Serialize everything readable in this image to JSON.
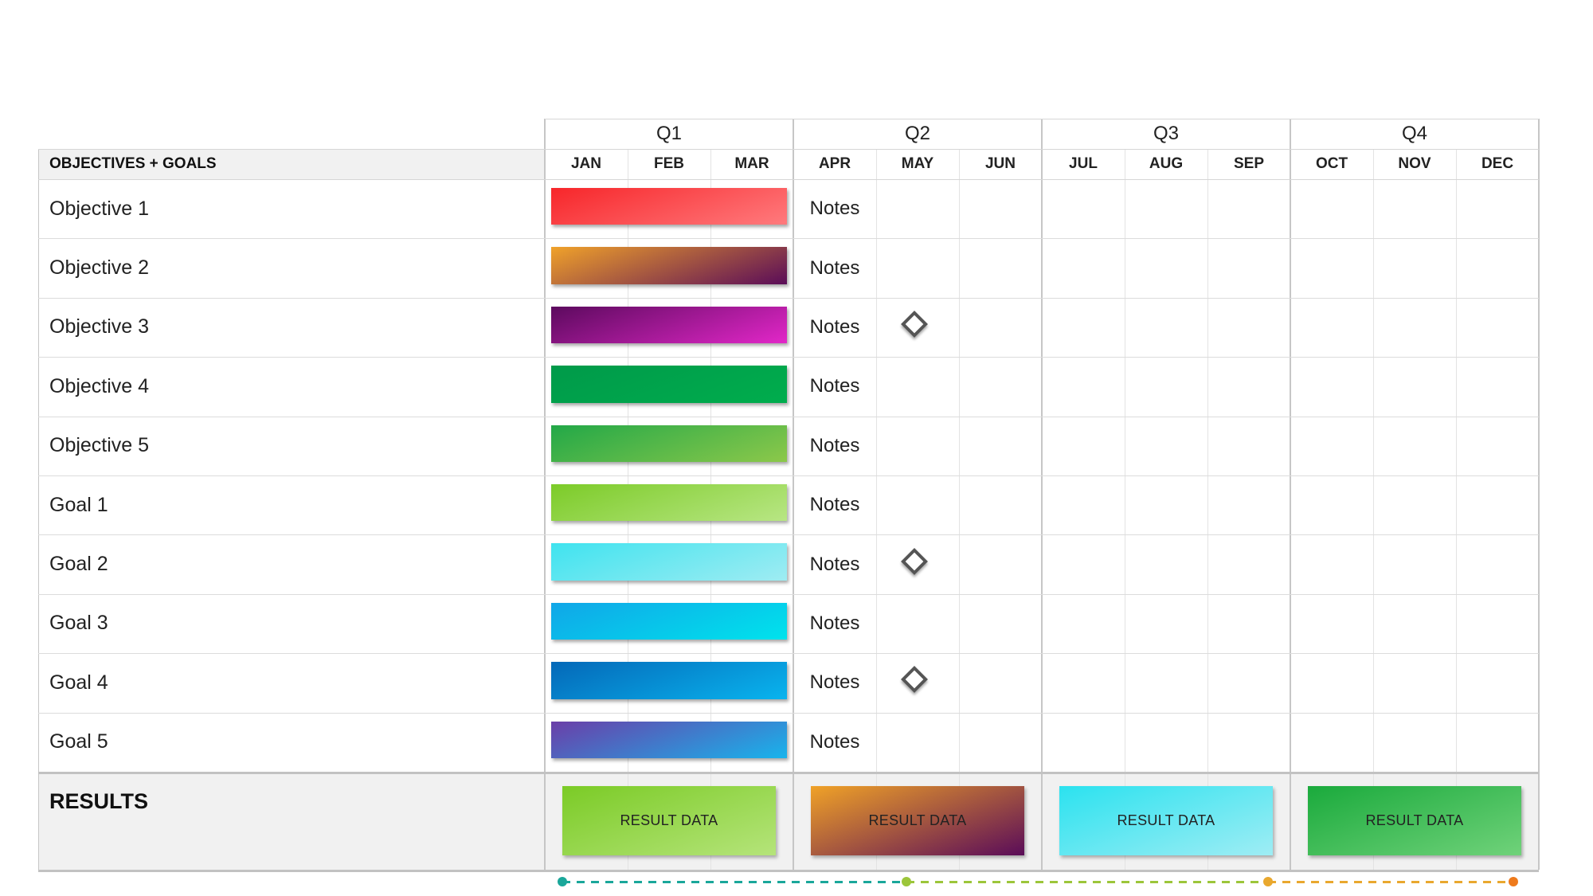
{
  "header": {
    "left_title": "OBJECTIVES + GOALS",
    "quarters": [
      "Q1",
      "Q2",
      "Q3",
      "Q4"
    ],
    "months": [
      "JAN",
      "FEB",
      "MAR",
      "APR",
      "MAY",
      "JUN",
      "JUL",
      "AUG",
      "SEP",
      "OCT",
      "NOV",
      "DEC"
    ]
  },
  "rows": [
    {
      "label": "Objective 1",
      "note": "Notes",
      "milestone": false,
      "bar_colors": [
        "#f7262a",
        "#ff7a7d"
      ]
    },
    {
      "label": "Objective 2",
      "note": "Notes",
      "milestone": false,
      "bar_colors": [
        "#f0a22a",
        "#5a0c58"
      ]
    },
    {
      "label": "Objective 3",
      "note": "Notes",
      "milestone": true,
      "bar_colors": [
        "#5c0a5e",
        "#e227c8"
      ]
    },
    {
      "label": "Objective 4",
      "note": "Notes",
      "milestone": false,
      "bar_colors": [
        "#009a4a",
        "#00ad4d"
      ]
    },
    {
      "label": "Objective 5",
      "note": "Notes",
      "milestone": false,
      "bar_colors": [
        "#22a848",
        "#8cc84a"
      ]
    },
    {
      "label": "Goal 1",
      "note": "Notes",
      "milestone": false,
      "bar_colors": [
        "#7ccb28",
        "#b8e684"
      ]
    },
    {
      "label": "Goal 2",
      "note": "Notes",
      "milestone": true,
      "bar_colors": [
        "#3fe3ef",
        "#9fecf2"
      ]
    },
    {
      "label": "Goal 3",
      "note": "Notes",
      "milestone": false,
      "bar_colors": [
        "#10a6e8",
        "#00e3ec"
      ]
    },
    {
      "label": "Goal 4",
      "note": "Notes",
      "milestone": true,
      "bar_colors": [
        "#0468b8",
        "#09b4ee"
      ]
    },
    {
      "label": "Goal 5",
      "note": "Notes",
      "milestone": false,
      "bar_colors": [
        "#6b3ea8",
        "#18b4ec"
      ]
    }
  ],
  "results": {
    "label": "RESULTS",
    "boxes": [
      {
        "text": "RESULT DATA",
        "colors": [
          "#7bcb26",
          "#b5e47a"
        ]
      },
      {
        "text": "RESULT DATA",
        "colors": [
          "#f0a227",
          "#5a0c58"
        ]
      },
      {
        "text": "RESULT DATA",
        "colors": [
          "#2be2ef",
          "#9fedf4"
        ]
      },
      {
        "text": "RESULT DATA",
        "colors": [
          "#1aaa3c",
          "#70d27a"
        ]
      }
    ]
  },
  "timeline": {
    "segment_colors": [
      "#1aa79a",
      "#9cc63a",
      "#e9a82e",
      "#ee7a1c"
    ]
  }
}
